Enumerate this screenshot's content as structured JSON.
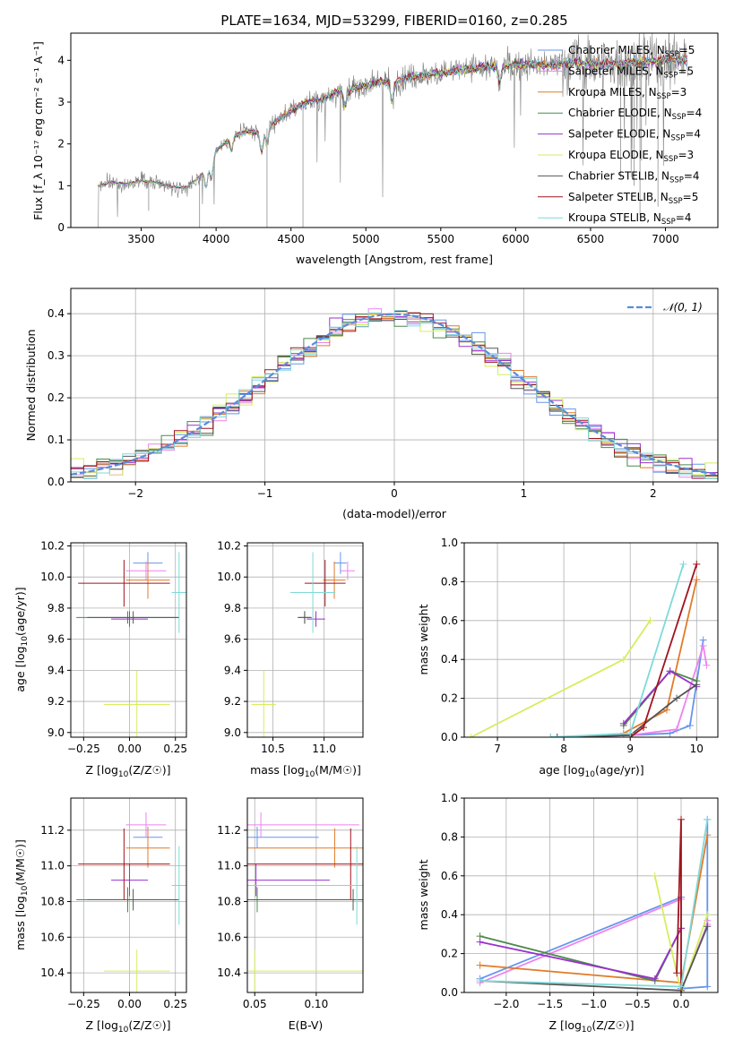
{
  "colors": {
    "chabrier_miles": "#6495ed",
    "salpeter_miles": "#ee82ee",
    "kroupa_miles": "#e07b28",
    "chabrier_elodie": "#4a8a4a",
    "salpeter_elodie": "#9932cc",
    "kroupa_elodie": "#d4ee5e",
    "chabrier_stelib": "#555555",
    "salpeter_stelib": "#a0141e",
    "kroupa_stelib": "#7fd9d9",
    "spectrum": "#808080",
    "normal": "#5a8cd8"
  },
  "chart_data": [
    {
      "id": "spectrum",
      "type": "line",
      "title": "PLATE=1634, MJD=53299, FIBERID=0160, z=0.285",
      "xlabel": "wavelength [Angstrom, rest frame]",
      "ylabel": "Flux [f_λ 10⁻¹⁷ erg cm⁻² s⁻¹ A⁻¹]",
      "xlim": [
        3030,
        7350
      ],
      "ylim": [
        0,
        4.65
      ],
      "xticks": [
        "3500",
        "4000",
        "4500",
        "5000",
        "5500",
        "6000",
        "6500",
        "7000"
      ],
      "yticks": [
        "0",
        "1",
        "2",
        "3",
        "4"
      ],
      "grid": false,
      "legend_position": "top-right",
      "legend": [
        {
          "name": "Chabrier MILES, N_SSP=5",
          "key": "chabrier_miles",
          "base": "Chabrier MILES, N",
          "sub": "SSP",
          "tail": "=5"
        },
        {
          "name": "Salpeter MILES, N_SSP=5",
          "key": "salpeter_miles",
          "base": "Salpeter MILES, N",
          "sub": "SSP",
          "tail": "=5"
        },
        {
          "name": "Kroupa MILES, N_SSP=3",
          "key": "kroupa_miles",
          "base": "Kroupa MILES, N",
          "sub": "SSP",
          "tail": "=3"
        },
        {
          "name": "Chabrier ELODIE, N_SSP=4",
          "key": "chabrier_elodie",
          "base": "Chabrier ELODIE, N",
          "sub": "SSP",
          "tail": "=4"
        },
        {
          "name": "Salpeter ELODIE, N_SSP=4",
          "key": "salpeter_elodie",
          "base": "Salpeter ELODIE, N",
          "sub": "SSP",
          "tail": "=4"
        },
        {
          "name": "Kroupa ELODIE, N_SSP=3",
          "key": "kroupa_elodie",
          "base": "Kroupa ELODIE, N",
          "sub": "SSP",
          "tail": "=3"
        },
        {
          "name": "Chabrier STELIB, N_SSP=4",
          "key": "chabrier_stelib",
          "base": "Chabrier STELIB, N",
          "sub": "SSP",
          "tail": "=4"
        },
        {
          "name": "Salpeter STELIB, N_SSP=5",
          "key": "salpeter_stelib",
          "base": "Salpeter STELIB, N",
          "sub": "SSP",
          "tail": "=5"
        },
        {
          "name": "Kroupa STELIB, N_SSP=4",
          "key": "kroupa_stelib",
          "base": "Kroupa STELIB, N",
          "sub": "SSP",
          "tail": "=4"
        }
      ],
      "continuum": [
        [
          3210,
          1.0
        ],
        [
          3300,
          1.08
        ],
        [
          3400,
          1.05
        ],
        [
          3500,
          1.12
        ],
        [
          3600,
          1.08
        ],
        [
          3700,
          0.98
        ],
        [
          3800,
          0.95
        ],
        [
          3900,
          1.25
        ],
        [
          3950,
          1.55
        ],
        [
          4000,
          1.85
        ],
        [
          4100,
          2.15
        ],
        [
          4200,
          2.3
        ],
        [
          4300,
          2.25
        ],
        [
          4400,
          2.55
        ],
        [
          4500,
          2.8
        ],
        [
          4600,
          3.0
        ],
        [
          4700,
          3.05
        ],
        [
          4800,
          3.25
        ],
        [
          4900,
          3.3
        ],
        [
          5000,
          3.4
        ],
        [
          5100,
          3.5
        ],
        [
          5200,
          3.5
        ],
        [
          5300,
          3.6
        ],
        [
          5400,
          3.65
        ],
        [
          5500,
          3.7
        ],
        [
          5600,
          3.75
        ],
        [
          5700,
          3.8
        ],
        [
          5800,
          3.85
        ],
        [
          5900,
          3.85
        ],
        [
          6000,
          3.9
        ],
        [
          6200,
          3.88
        ],
        [
          6400,
          3.95
        ],
        [
          6600,
          3.9
        ],
        [
          6800,
          3.95
        ],
        [
          7000,
          4.0
        ],
        [
          7150,
          4.02
        ]
      ]
    },
    {
      "id": "residuals",
      "type": "step",
      "xlabel": "(data-model)/error",
      "ylabel": "Normed distribution",
      "xlim": [
        -2.5,
        2.5
      ],
      "ylim": [
        0,
        0.46
      ],
      "xticks": [
        "−2",
        "−1",
        "0",
        "1",
        "2"
      ],
      "yticks": [
        "0.0",
        "0.1",
        "0.2",
        "0.3",
        "0.4"
      ],
      "grid": true,
      "legend_position": "top-right",
      "legend": "𝒩(0, 1)"
    },
    {
      "id": "age_vs_Z",
      "type": "errorbar",
      "xlabel_base": "Z [log",
      "xlabel_sub": "10",
      "xlabel_tail": "(Z/Z☉)]",
      "ylabel_base": "age  [log",
      "ylabel_sub": "10",
      "ylabel_tail": "(age/yr)]",
      "xlim": [
        -0.32,
        0.31
      ],
      "ylim": [
        8.97,
        10.22
      ],
      "xticks": [
        "−0.25",
        "0.00",
        "0.25"
      ],
      "yticks": [
        "9.0",
        "9.2",
        "9.4",
        "9.6",
        "9.8",
        "10.0",
        "10.2"
      ],
      "grid": true
    },
    {
      "id": "age_vs_mass",
      "type": "errorbar",
      "xlabel_base": "mass [log",
      "xlabel_sub": "10",
      "xlabel_tail": "(M/M☉)]",
      "xlim": [
        10.25,
        11.38
      ],
      "ylim": [
        8.97,
        10.22
      ],
      "xticks": [
        "10.5",
        "11.0"
      ],
      "yticks": [
        "9.0",
        "9.2",
        "9.4",
        "9.6",
        "9.8",
        "10.0",
        "10.2"
      ],
      "grid": true
    },
    {
      "id": "weight_vs_age",
      "type": "line",
      "xlabel_base": "age  [log",
      "xlabel_sub": "10",
      "xlabel_tail": "(age/yr)]",
      "ylabel": "mass weight",
      "xlim": [
        6.5,
        10.32
      ],
      "ylim": [
        0,
        1.0
      ],
      "xticks": [
        "7",
        "8",
        "9",
        "10"
      ],
      "yticks": [
        "0.0",
        "0.2",
        "0.4",
        "0.6",
        "0.8",
        "1.0"
      ],
      "grid": true
    },
    {
      "id": "mass_vs_Z",
      "type": "errorbar",
      "xlabel_base": "Z [log",
      "xlabel_sub": "10",
      "xlabel_tail": "(Z/Z☉)]",
      "ylabel_base": "mass [log",
      "ylabel_sub": "10",
      "ylabel_tail": "(M/M☉)]",
      "xlim": [
        -0.32,
        0.31
      ],
      "ylim": [
        10.29,
        11.38
      ],
      "xticks": [
        "−0.25",
        "0.00",
        "0.25"
      ],
      "yticks": [
        "10.4",
        "10.6",
        "10.8",
        "11.0",
        "11.2"
      ],
      "grid": true
    },
    {
      "id": "mass_vs_ebv",
      "type": "errorbar",
      "xlabel": "E(B-V)",
      "xlim": [
        0.044,
        0.138
      ],
      "ylim": [
        10.29,
        11.38
      ],
      "xticks": [
        "0.05",
        "0.10"
      ],
      "yticks": [
        "10.4",
        "10.6",
        "10.8",
        "11.0",
        "11.2"
      ],
      "grid": true
    },
    {
      "id": "weight_vs_Z",
      "type": "line",
      "xlabel_base": "Z [log",
      "xlabel_sub": "10",
      "xlabel_tail": "(Z/Z☉)]",
      "ylabel": "mass weight",
      "xlim": [
        -2.48,
        0.42
      ],
      "ylim": [
        0,
        1.0
      ],
      "xticks": [
        "−2.0",
        "−1.5",
        "−1.0",
        "−0.5",
        "0.0"
      ],
      "yticks": [
        "0.0",
        "0.2",
        "0.4",
        "0.6",
        "0.8",
        "1.0"
      ],
      "grid": true
    }
  ],
  "models": [
    {
      "key": "chabrier_miles",
      "Z": [
        0.1,
        0.08
      ],
      "age": [
        10.09,
        0.07
      ],
      "mass": [
        11.16,
        0.06
      ],
      "ebv": [
        0.052,
        0.05
      ],
      "w_age": [
        [
          7.8,
          0.0
        ],
        [
          9.0,
          0.01
        ],
        [
          9.6,
          0.02
        ],
        [
          9.9,
          0.06
        ],
        [
          10.1,
          0.5
        ]
      ],
      "w_Z": [
        [
          -2.3,
          0.07
        ],
        [
          0.0,
          0.49
        ],
        [
          0.0,
          0.02
        ],
        [
          0.3,
          0.03
        ],
        [
          0.3,
          0.89
        ]
      ]
    },
    {
      "key": "salpeter_miles",
      "Z": [
        0.09,
        0.11
      ],
      "age": [
        10.04,
        0.06
      ],
      "mass": [
        11.23,
        0.07
      ],
      "ebv": [
        0.055,
        0.08
      ],
      "w_age": [
        [
          7.9,
          0.0
        ],
        [
          9.0,
          0.01
        ],
        [
          9.7,
          0.04
        ],
        [
          10.1,
          0.47
        ],
        [
          10.15,
          0.37
        ]
      ],
      "w_Z": [
        [
          -2.3,
          0.05
        ],
        [
          0.0,
          0.48
        ],
        [
          0.0,
          0.01
        ],
        [
          0.3,
          0.35
        ],
        [
          0.3,
          0.37
        ]
      ]
    },
    {
      "key": "kroupa_miles",
      "Z": [
        0.1,
        0.12
      ],
      "age": [
        9.98,
        0.12
      ],
      "mass": [
        11.1,
        0.11
      ],
      "ebv": [
        0.115,
        0.11
      ],
      "w_age": [
        [
          8.9,
          0.02
        ],
        [
          9.55,
          0.14
        ],
        [
          10.0,
          0.81
        ]
      ],
      "w_Z": [
        [
          -2.3,
          0.14
        ],
        [
          0.0,
          0.05
        ],
        [
          0.3,
          0.81
        ]
      ]
    },
    {
      "key": "chabrier_elodie",
      "Z": [
        -0.01,
        0.28
      ],
      "age": [
        9.74,
        0.04
      ],
      "mass": [
        10.81,
        0.07
      ],
      "ebv": [
        0.052,
        0.07
      ],
      "w_age": [
        [
          8.9,
          0.06
        ],
        [
          9.6,
          0.34
        ],
        [
          10.0,
          0.29
        ]
      ],
      "w_Z": [
        [
          -2.3,
          0.29
        ],
        [
          -0.3,
          0.06
        ],
        [
          0.0,
          0.33
        ]
      ]
    },
    {
      "key": "salpeter_elodie",
      "Z": [
        0.0,
        0.1
      ],
      "age": [
        9.73,
        0.05
      ],
      "mass": [
        10.92,
        0.09
      ],
      "ebv": [
        0.051,
        0.06
      ],
      "w_age": [
        [
          8.9,
          0.07
        ],
        [
          9.6,
          0.34
        ],
        [
          10.0,
          0.26
        ]
      ],
      "w_Z": [
        [
          -2.3,
          0.26
        ],
        [
          -0.3,
          0.07
        ],
        [
          0.0,
          0.33
        ]
      ]
    },
    {
      "key": "kroupa_elodie",
      "Z": [
        0.04,
        0.18
      ],
      "age": [
        9.18,
        0.22
      ],
      "mass": [
        10.41,
        0.12
      ],
      "ebv": [
        0.05,
        0.1
      ],
      "w_age": [
        [
          6.6,
          0.0
        ],
        [
          8.9,
          0.4
        ],
        [
          9.3,
          0.6
        ]
      ],
      "w_Z": [
        [
          -0.3,
          0.6
        ],
        [
          0.0,
          0.0
        ],
        [
          0.3,
          0.4
        ]
      ]
    },
    {
      "key": "chabrier_stelib",
      "Z": [
        0.02,
        0.25
      ],
      "age": [
        9.74,
        0.04
      ],
      "mass": [
        10.81,
        0.06
      ],
      "ebv": [
        0.13,
        0.14
      ],
      "w_age": [
        [
          7.9,
          0.0
        ],
        [
          9.0,
          0.01
        ],
        [
          9.7,
          0.2
        ],
        [
          10.0,
          0.27
        ]
      ],
      "w_Z": [
        [
          -2.3,
          0.06
        ],
        [
          0.0,
          0.01
        ],
        [
          0.3,
          0.34
        ]
      ]
    },
    {
      "key": "salpeter_stelib",
      "Z": [
        -0.03,
        0.25
      ],
      "age": [
        9.96,
        0.15
      ],
      "mass": [
        11.01,
        0.2
      ],
      "ebv": [
        0.128,
        0.19
      ],
      "w_age": [
        [
          9.0,
          0.0
        ],
        [
          9.2,
          0.05
        ],
        [
          10.0,
          0.89
        ]
      ],
      "w_Z": [
        [
          -0.05,
          0.1
        ],
        [
          0.0,
          0.89
        ],
        [
          0.0,
          0.0
        ]
      ]
    },
    {
      "key": "kroupa_stelib",
      "Z": [
        0.27,
        0.04
      ],
      "age": [
        9.9,
        0.26
      ],
      "mass": [
        10.89,
        0.22
      ],
      "ebv": [
        0.133,
        0.22
      ],
      "w_age": [
        [
          7.8,
          0.0
        ],
        [
          9.0,
          0.02
        ],
        [
          9.8,
          0.89
        ]
      ],
      "w_Z": [
        [
          -2.3,
          0.06
        ],
        [
          0.0,
          0.03
        ],
        [
          0.3,
          0.89
        ]
      ]
    }
  ]
}
